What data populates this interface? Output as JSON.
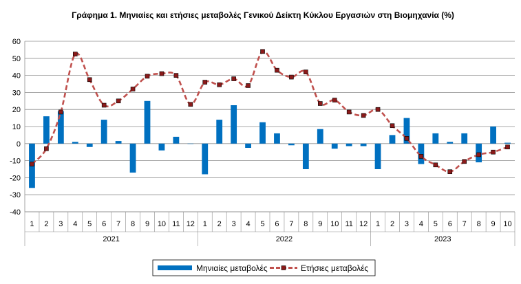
{
  "chart_data": {
    "type": "bar+line",
    "title": "Γράφημα 1. Μηνιαίες και ετήσιες μεταβολές  Γενικού Δείκτη Κύκλου Εργασιών στη Βιομηχανία (%)",
    "ylim": [
      -40,
      60
    ],
    "y_ticks": [
      -40,
      -30,
      -20,
      -10,
      0,
      10,
      20,
      30,
      40,
      50,
      60
    ],
    "grid": "horizontal",
    "legend_position": "bottom-center",
    "months": [
      "1",
      "2",
      "3",
      "4",
      "5",
      "6",
      "7",
      "8",
      "9",
      "10",
      "11",
      "12",
      "1",
      "2",
      "3",
      "4",
      "5",
      "6",
      "7",
      "8",
      "9",
      "10",
      "11",
      "12",
      "1",
      "2",
      "3",
      "4",
      "5",
      "6",
      "7",
      "8",
      "9",
      "10"
    ],
    "years": [
      {
        "label": "2021",
        "count": 12
      },
      {
        "label": "2022",
        "count": 12
      },
      {
        "label": "2023",
        "count": 10
      }
    ],
    "series": [
      {
        "name": "Μηνιαίες μεταβολές",
        "kind": "bar",
        "color": "#0070C0",
        "values": [
          -26,
          16,
          19,
          1,
          -2,
          14,
          1.5,
          -17,
          25,
          -4,
          4,
          0,
          -18,
          14,
          22.5,
          -2.5,
          12.5,
          6,
          -1,
          -15,
          8.5,
          -3,
          -1.5,
          -1.5,
          -15,
          5,
          15,
          -12,
          6,
          1,
          6,
          -11,
          10,
          0.5
        ]
      },
      {
        "name": "Ετήσιες μεταβολές",
        "kind": "line",
        "color": "#C0504D",
        "marker_fill": "#8B1A1A",
        "values": [
          -12,
          -3,
          18.5,
          52.5,
          37.5,
          22.5,
          25,
          32,
          39.5,
          41,
          40,
          23,
          36,
          34.5,
          38,
          34,
          54,
          43,
          39,
          42,
          23.5,
          25.5,
          18.5,
          16.5,
          20,
          10.5,
          3,
          -7.5,
          -12.5,
          -16.5,
          -10.5,
          -6.5,
          -5,
          -2
        ]
      }
    ]
  }
}
